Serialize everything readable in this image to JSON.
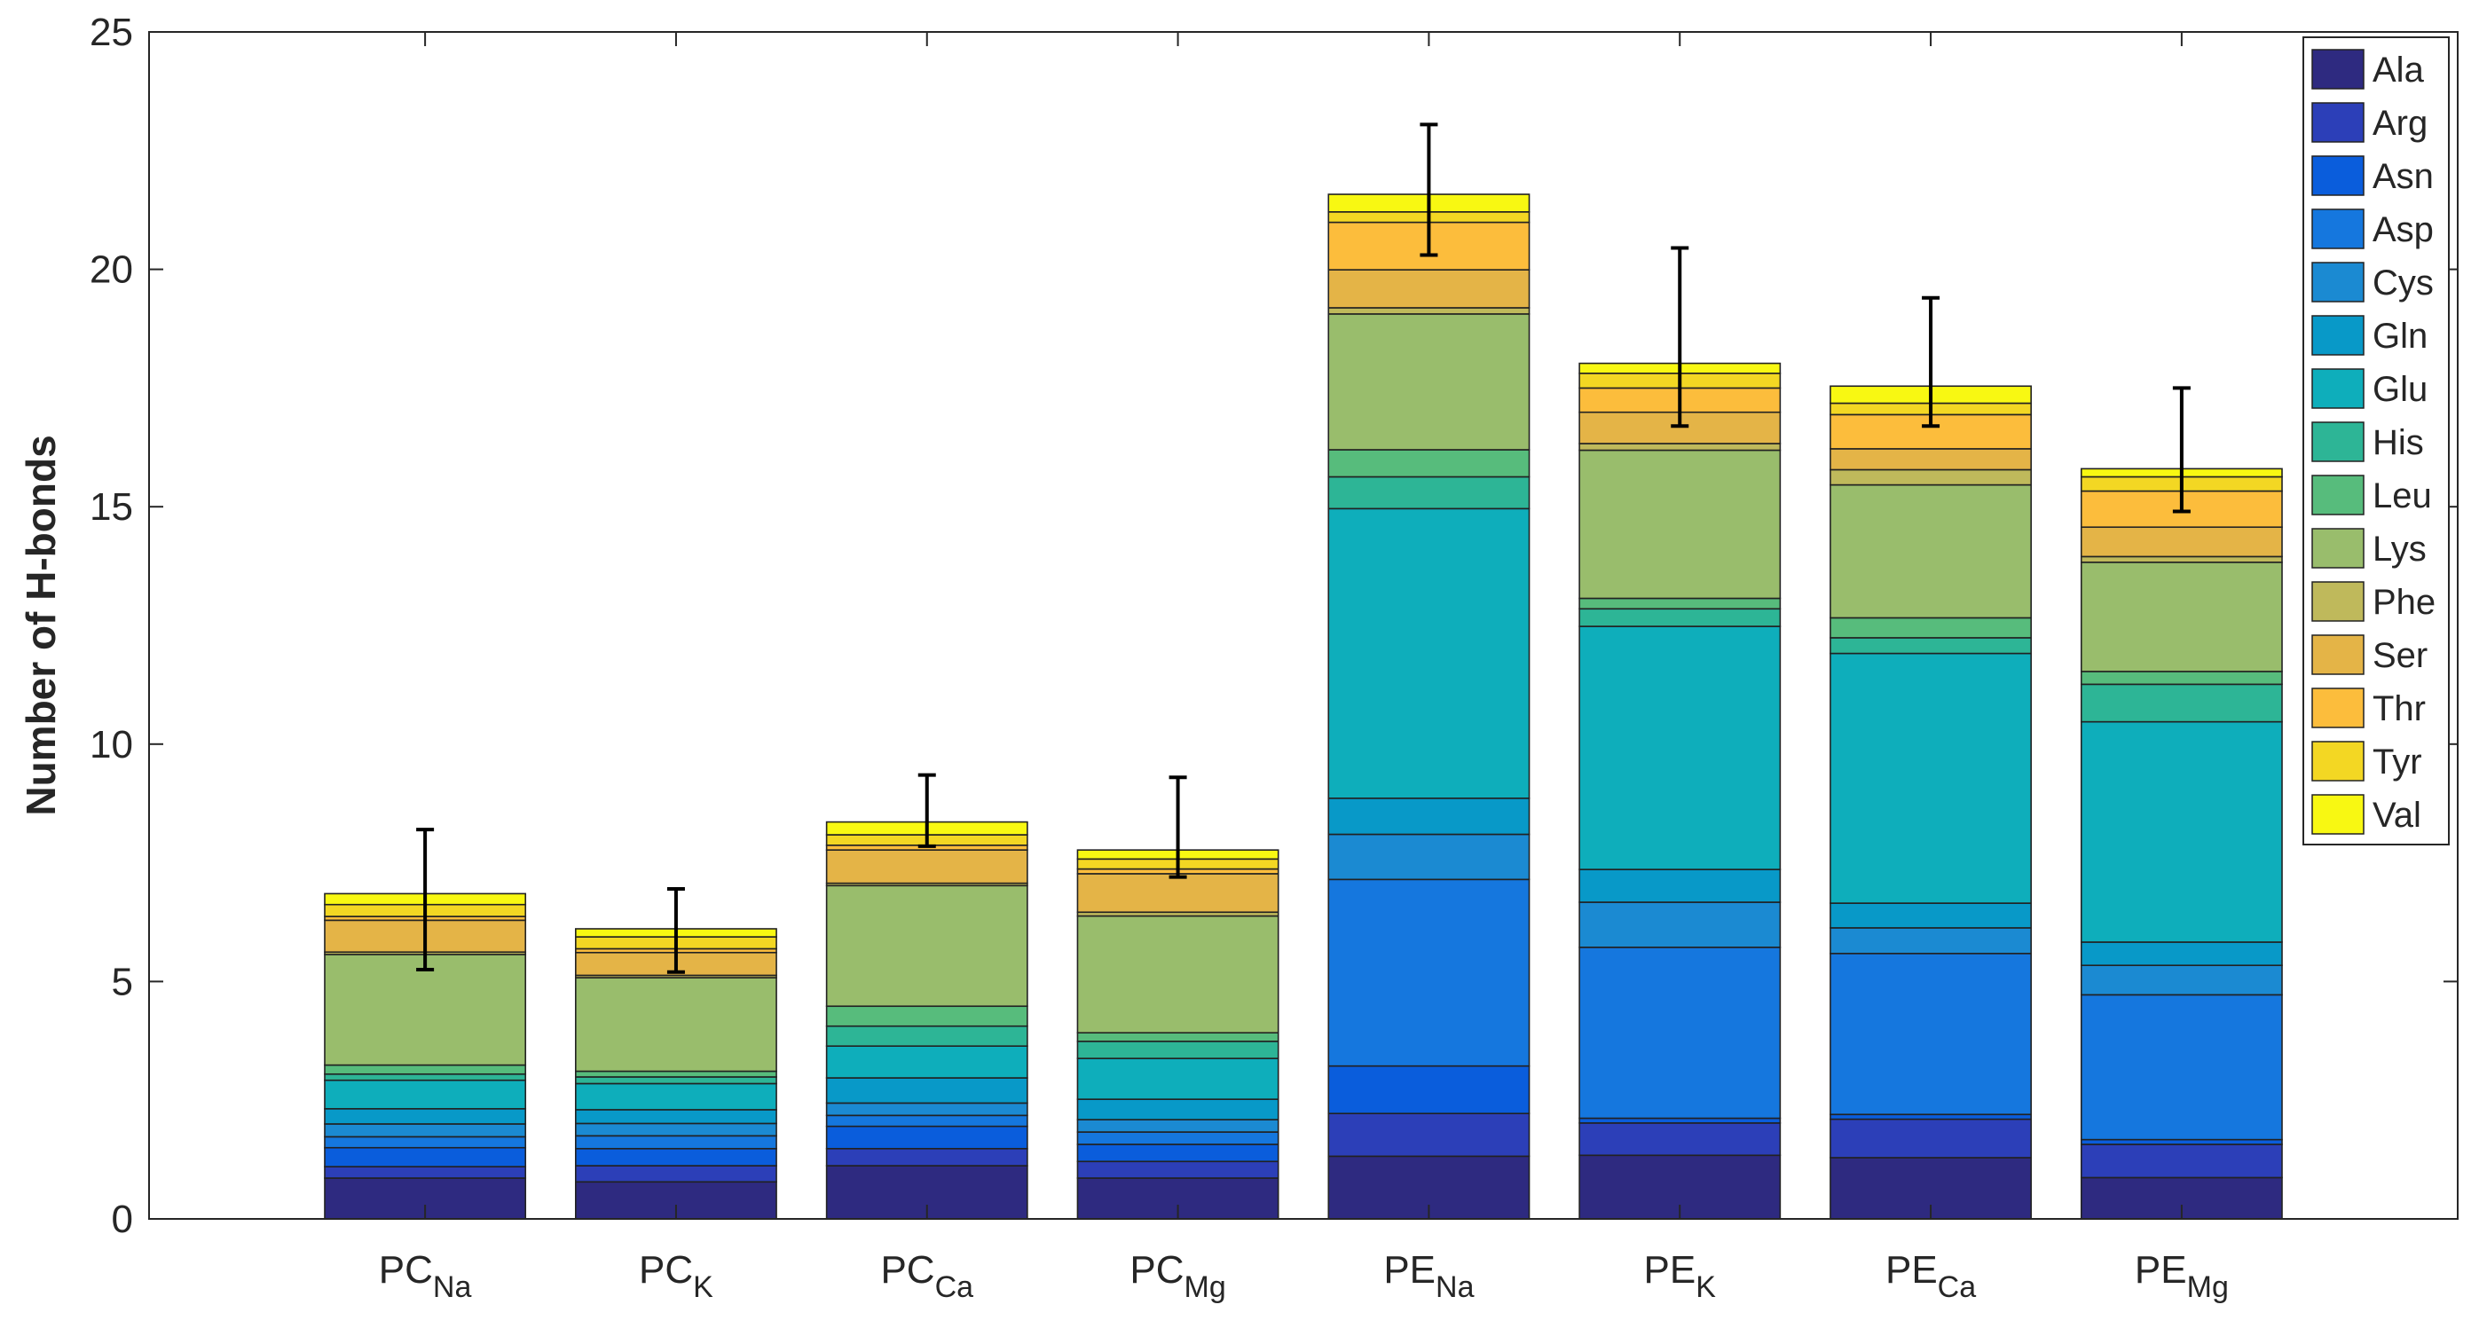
{
  "chart_data": {
    "type": "bar",
    "stacked": true,
    "ylabel": "Number of H-bonds",
    "ylim": [
      0,
      25
    ],
    "yticks": [
      "0",
      "5",
      "10",
      "15",
      "20",
      "25"
    ],
    "grid": false,
    "legend_position": "top-right",
    "categories": [
      {
        "base": "PC",
        "sub": "Na"
      },
      {
        "base": "PC",
        "sub": "K"
      },
      {
        "base": "PC",
        "sub": "Ca"
      },
      {
        "base": "PC",
        "sub": "Mg"
      },
      {
        "base": "PE",
        "sub": "Na"
      },
      {
        "base": "PE",
        "sub": "K"
      },
      {
        "base": "PE",
        "sub": "Ca"
      },
      {
        "base": "PE",
        "sub": "Mg"
      }
    ],
    "series": [
      {
        "name": "Ala",
        "color": "#2e2a80",
        "values": [
          0.86,
          0.78,
          1.12,
          0.86,
          1.32,
          1.34,
          1.29,
          0.87
        ]
      },
      {
        "name": "Arg",
        "color": "#2c3fb8",
        "values": [
          0.24,
          0.34,
          0.36,
          0.35,
          0.9,
          0.68,
          0.81,
          0.7
        ]
      },
      {
        "name": "Asn",
        "color": "#0a5ddc",
        "values": [
          0.4,
          0.36,
          0.47,
          0.36,
          1.0,
          0.1,
          0.1,
          0.1
        ]
      },
      {
        "name": "Asp",
        "color": "#1577de",
        "values": [
          0.23,
          0.27,
          0.23,
          0.26,
          3.93,
          3.6,
          3.39,
          3.05
        ]
      },
      {
        "name": "Cys",
        "color": "#1b8ad2",
        "values": [
          0.27,
          0.26,
          0.26,
          0.26,
          0.95,
          0.95,
          0.54,
          0.62
        ]
      },
      {
        "name": "Gln",
        "color": "#0899c8",
        "values": [
          0.32,
          0.29,
          0.53,
          0.43,
          0.76,
          0.69,
          0.52,
          0.49
        ]
      },
      {
        "name": "Glu",
        "color": "#0eaebb",
        "values": [
          0.6,
          0.55,
          0.67,
          0.86,
          6.1,
          5.12,
          5.26,
          4.64
        ]
      },
      {
        "name": "His",
        "color": "#2db596",
        "values": [
          0.13,
          0.14,
          0.42,
          0.36,
          0.67,
          0.37,
          0.33,
          0.79
        ]
      },
      {
        "name": "Leu",
        "color": "#57bc7c",
        "values": [
          0.19,
          0.12,
          0.42,
          0.18,
          0.57,
          0.22,
          0.42,
          0.27
        ]
      },
      {
        "name": "Lys",
        "color": "#99bd6c",
        "values": [
          2.33,
          1.97,
          2.54,
          2.46,
          2.86,
          3.12,
          2.8,
          2.3
        ]
      },
      {
        "name": "Phe",
        "color": "#bfb95b",
        "values": [
          0.05,
          0.05,
          0.05,
          0.08,
          0.13,
          0.14,
          0.32,
          0.12
        ]
      },
      {
        "name": "Ser",
        "color": "#e4b447",
        "values": [
          0.67,
          0.48,
          0.7,
          0.81,
          0.8,
          0.66,
          0.44,
          0.62
        ]
      },
      {
        "name": "Thr",
        "color": "#fcbd3c",
        "values": [
          0.08,
          0.08,
          0.1,
          0.1,
          1.0,
          0.51,
          0.72,
          0.76
        ]
      },
      {
        "name": "Tyr",
        "color": "#f3d723",
        "values": [
          0.25,
          0.25,
          0.22,
          0.21,
          0.22,
          0.31,
          0.24,
          0.3
        ]
      },
      {
        "name": "Val",
        "color": "#f8f812",
        "values": [
          0.23,
          0.17,
          0.27,
          0.19,
          0.37,
          0.21,
          0.36,
          0.17
        ]
      }
    ],
    "error_bars": {
      "lower": [
        5.25,
        5.2,
        7.85,
        7.2,
        20.3,
        16.7,
        16.7,
        14.9
      ],
      "upper": [
        8.2,
        6.95,
        9.35,
        9.3,
        23.05,
        20.45,
        19.4,
        17.5
      ]
    }
  }
}
